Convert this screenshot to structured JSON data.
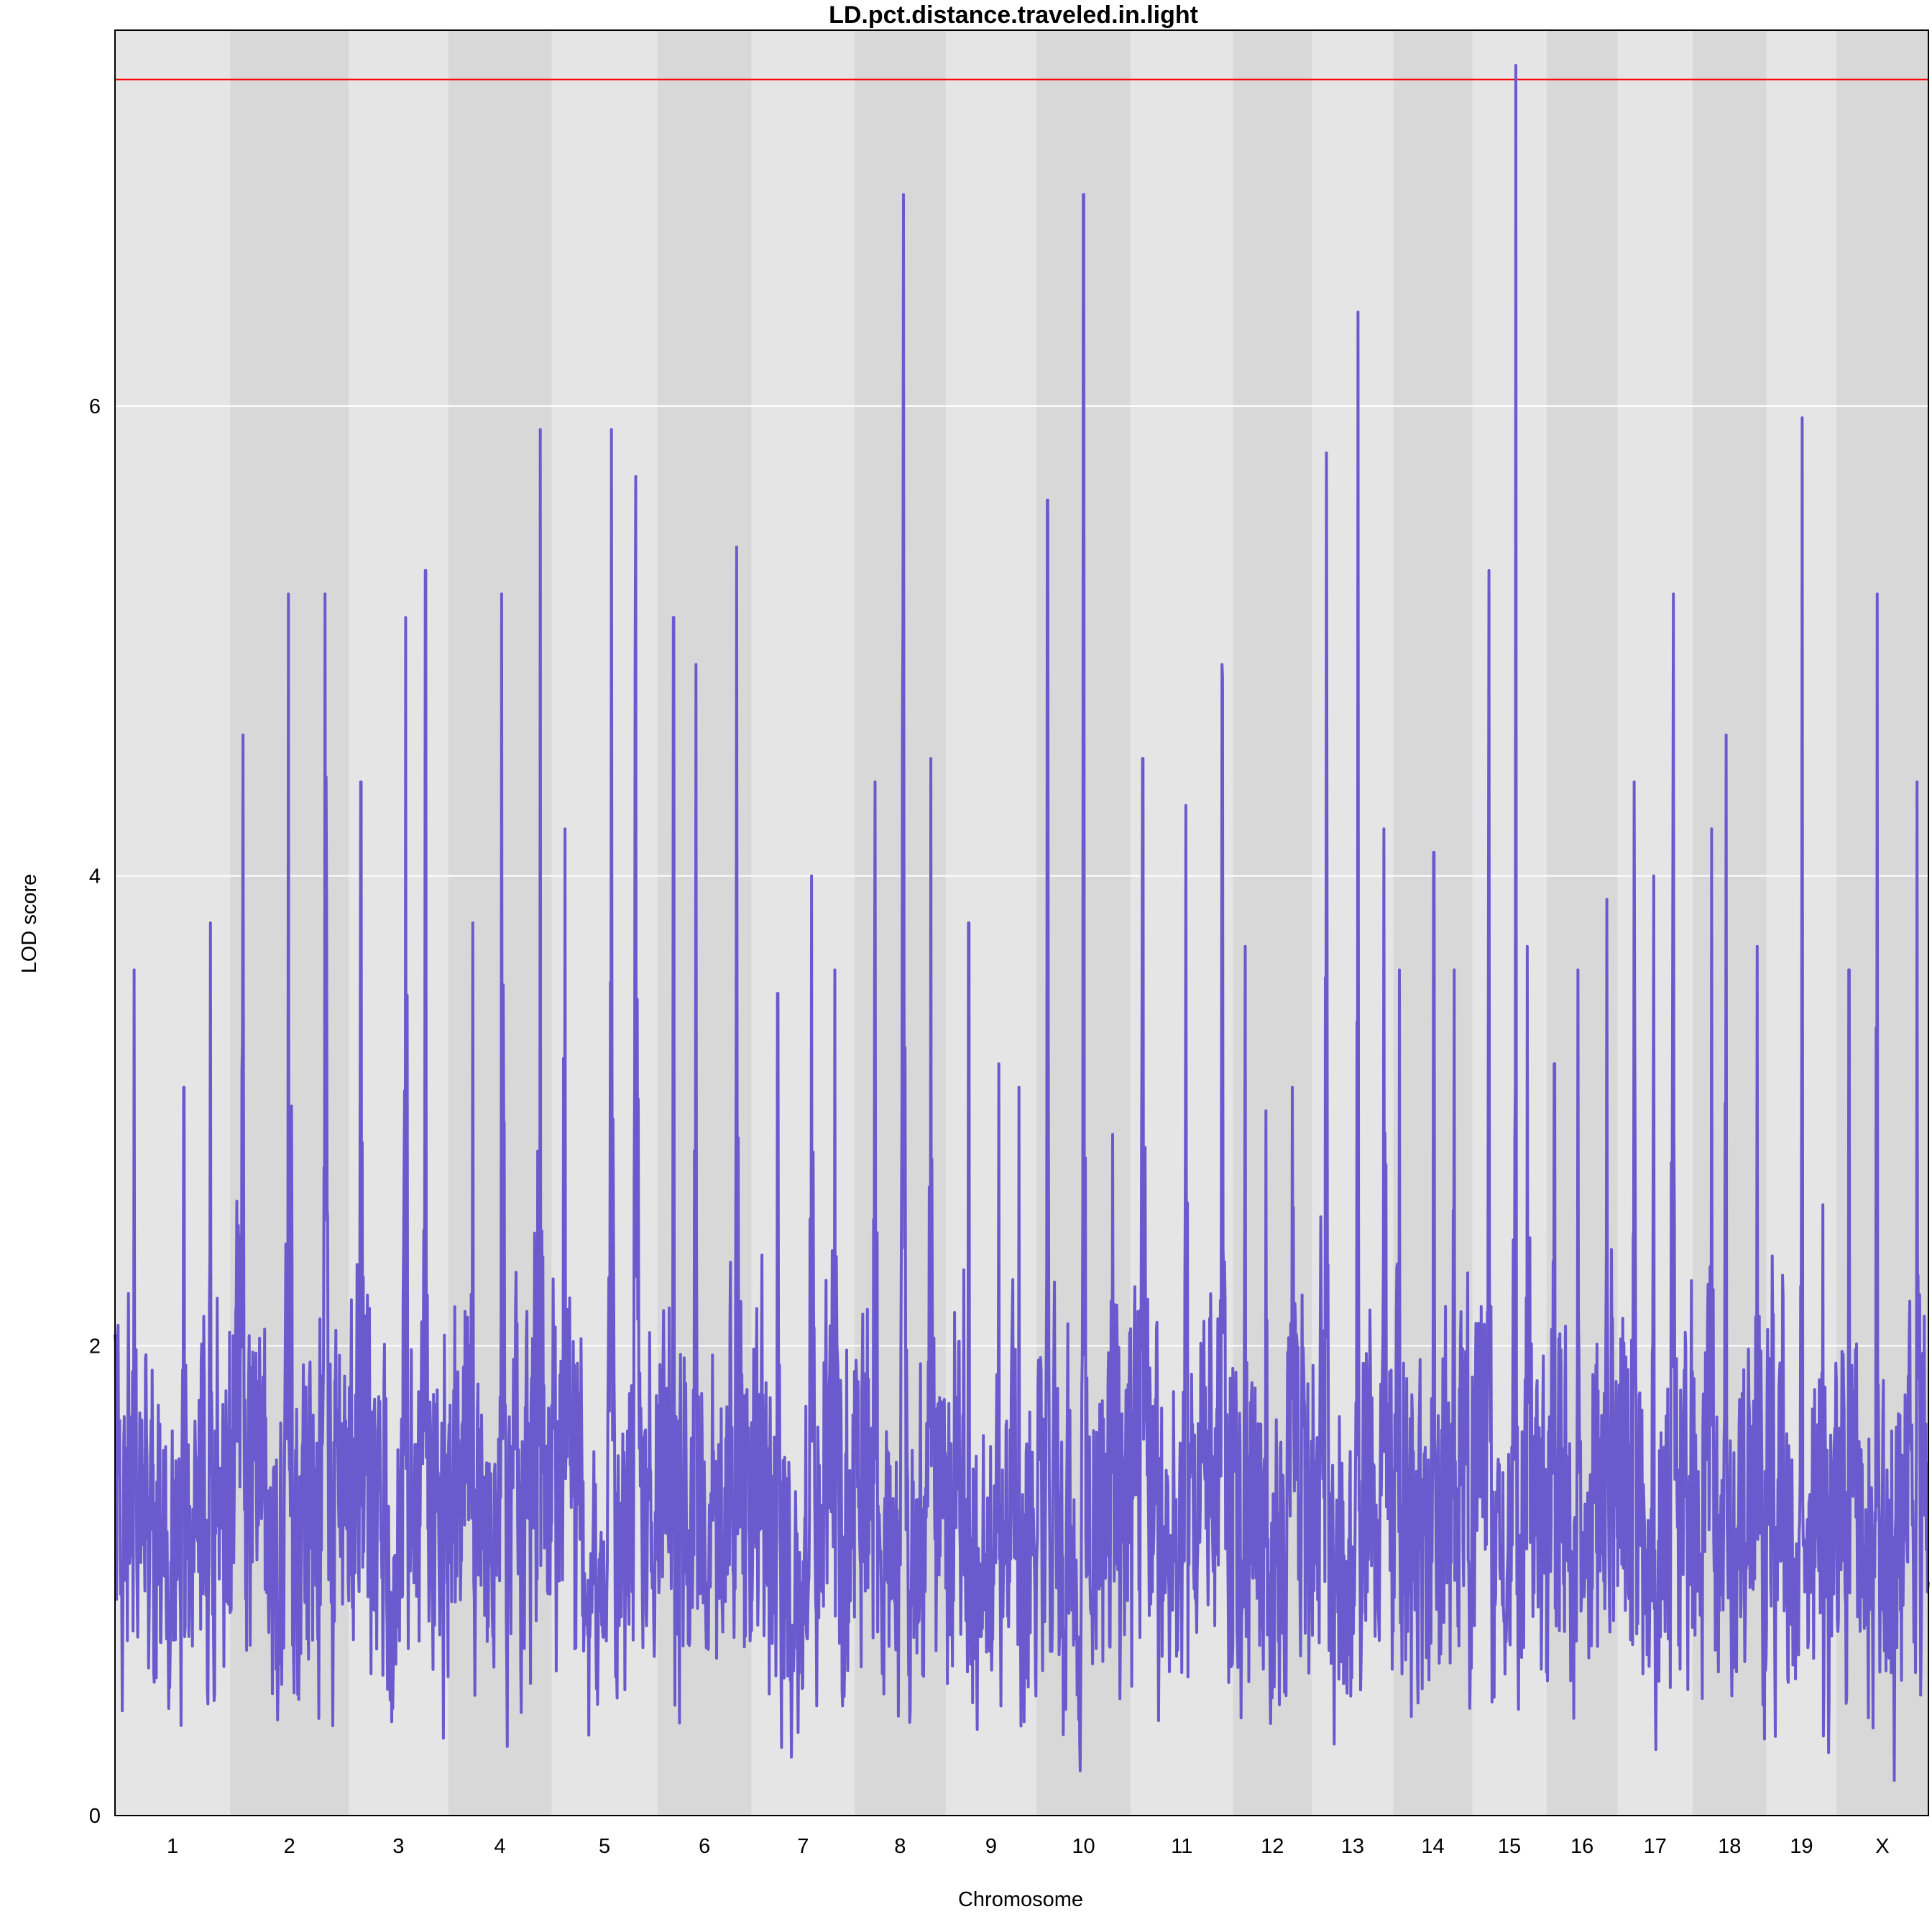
{
  "chart_data": {
    "type": "line",
    "title": "LD.pct.distance.traveled.in.light",
    "xlabel": "Chromosome",
    "ylabel": "LOD score",
    "ylim": [
      0,
      7.6
    ],
    "yticks": [
      0,
      2,
      4,
      6
    ],
    "grid": true,
    "threshold": {
      "value": 7.39,
      "color": "#ff0000"
    },
    "colors": {
      "line": "#6a5acd",
      "band_light": "#e5e5e5",
      "band_dark": "#d8d8d8",
      "gridline": "#ffffff"
    },
    "chromosomes": [
      {
        "name": "1",
        "peaks": [
          3.6,
          3.1,
          3.8
        ],
        "peak_lod": 3.8
      },
      {
        "name": "2",
        "peaks": [
          4.6,
          5.2,
          5.2
        ],
        "peak_lod": 5.2
      },
      {
        "name": "3",
        "peaks": [
          4.4,
          5.1,
          5.3
        ],
        "peak_lod": 5.3
      },
      {
        "name": "4",
        "peaks": [
          3.8,
          5.2,
          5.9
        ],
        "peak_lod": 5.9
      },
      {
        "name": "5",
        "peaks": [
          4.2,
          5.9,
          5.7
        ],
        "peak_lod": 5.9
      },
      {
        "name": "6",
        "peaks": [
          5.1,
          4.9,
          5.4
        ],
        "peak_lod": 5.4
      },
      {
        "name": "7",
        "peaks": [
          3.5,
          4.0,
          3.6
        ],
        "peak_lod": 4.0
      },
      {
        "name": "8",
        "peaks": [
          4.4,
          6.9,
          4.5
        ],
        "peak_lod": 6.9
      },
      {
        "name": "9",
        "peaks": [
          3.8,
          3.2,
          3.1
        ],
        "peak_lod": 3.8
      },
      {
        "name": "10",
        "peaks": [
          5.6,
          6.9,
          2.9
        ],
        "peak_lod": 6.9
      },
      {
        "name": "11",
        "peaks": [
          4.5,
          4.3,
          4.9
        ],
        "peak_lod": 4.9
      },
      {
        "name": "12",
        "peaks": [
          3.7,
          3.0,
          3.1
        ],
        "peak_lod": 3.7
      },
      {
        "name": "13",
        "peaks": [
          5.8,
          6.4,
          4.2
        ],
        "peak_lod": 6.4
      },
      {
        "name": "14",
        "peaks": [
          3.6,
          4.1,
          3.6
        ],
        "peak_lod": 4.1
      },
      {
        "name": "15",
        "peaks": [
          5.3,
          7.45,
          3.7
        ],
        "peak_lod": 7.45
      },
      {
        "name": "16",
        "peaks": [
          3.2,
          3.6,
          3.9
        ],
        "peak_lod": 3.9
      },
      {
        "name": "17",
        "peaks": [
          4.4,
          4.0,
          5.2
        ],
        "peak_lod": 5.2
      },
      {
        "name": "18",
        "peaks": [
          4.2,
          4.6,
          3.7
        ],
        "peak_lod": 4.6
      },
      {
        "name": "19",
        "peaks": [
          2.3,
          5.95,
          2.6
        ],
        "peak_lod": 5.95
      },
      {
        "name": "X",
        "peaks": [
          3.6,
          5.2,
          4.4
        ],
        "peak_lod": 5.2
      }
    ]
  }
}
